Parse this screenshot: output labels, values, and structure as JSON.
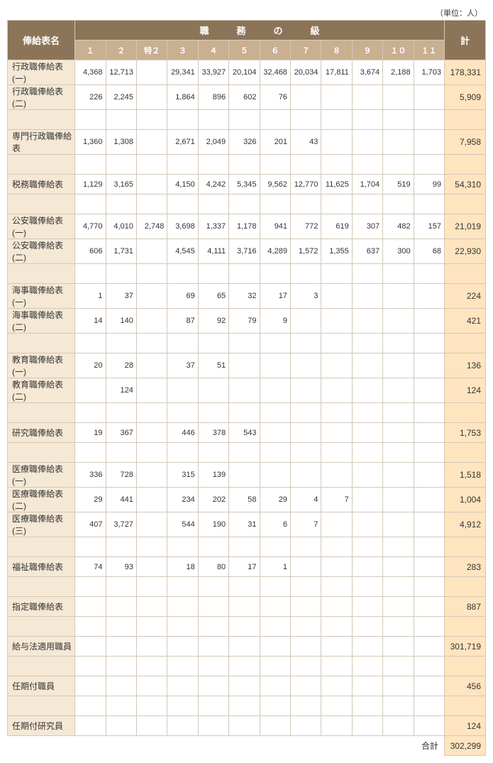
{
  "unit_label": "（単位：人）",
  "headers": {
    "row_name": "俸給表名",
    "grade_group": "職　　　務　　　の　　　級",
    "total": "計",
    "grades": [
      "１",
      "２",
      "特２",
      "３",
      "４",
      "５",
      "６",
      "７",
      "８",
      "９",
      "１０",
      "１１"
    ]
  },
  "rows": [
    {
      "name": "行政職俸給表(一)",
      "c": [
        "4,368",
        "12,713",
        "",
        "29,341",
        "33,927",
        "20,104",
        "32,468",
        "20,034",
        "17,811",
        "3,674",
        "2,188",
        "1,703"
      ],
      "total": "178,331"
    },
    {
      "name": "行政職俸給表(二)",
      "c": [
        "226",
        "2,245",
        "",
        "1,864",
        "896",
        "602",
        "76",
        "",
        "",
        "",
        "",
        ""
      ],
      "total": "5,909"
    },
    {
      "name": "",
      "c": [
        "",
        "",
        "",
        "",
        "",
        "",
        "",
        "",
        "",
        "",
        "",
        ""
      ],
      "total": ""
    },
    {
      "name": "専門行政職俸給表",
      "c": [
        "1,360",
        "1,308",
        "",
        "2,671",
        "2,049",
        "326",
        "201",
        "43",
        "",
        "",
        "",
        ""
      ],
      "total": "7,958"
    },
    {
      "name": "",
      "c": [
        "",
        "",
        "",
        "",
        "",
        "",
        "",
        "",
        "",
        "",
        "",
        ""
      ],
      "total": ""
    },
    {
      "name": "税務職俸給表",
      "c": [
        "1,129",
        "3,165",
        "",
        "4,150",
        "4,242",
        "5,345",
        "9,562",
        "12,770",
        "11,625",
        "1,704",
        "519",
        "99"
      ],
      "total": "54,310"
    },
    {
      "name": "",
      "c": [
        "",
        "",
        "",
        "",
        "",
        "",
        "",
        "",
        "",
        "",
        "",
        ""
      ],
      "total": ""
    },
    {
      "name": "公安職俸給表(一)",
      "c": [
        "4,770",
        "4,010",
        "2,748",
        "3,698",
        "1,337",
        "1,178",
        "941",
        "772",
        "619",
        "307",
        "482",
        "157"
      ],
      "total": "21,019"
    },
    {
      "name": "公安職俸給表(二)",
      "c": [
        "606",
        "1,731",
        "",
        "4,545",
        "4,111",
        "3,716",
        "4,289",
        "1,572",
        "1,355",
        "637",
        "300",
        "68"
      ],
      "total": "22,930"
    },
    {
      "name": "",
      "c": [
        "",
        "",
        "",
        "",
        "",
        "",
        "",
        "",
        "",
        "",
        "",
        ""
      ],
      "total": ""
    },
    {
      "name": "海事職俸給表(一)",
      "c": [
        "1",
        "37",
        "",
        "69",
        "65",
        "32",
        "17",
        "3",
        "",
        "",
        "",
        ""
      ],
      "total": "224"
    },
    {
      "name": "海事職俸給表(二)",
      "c": [
        "14",
        "140",
        "",
        "87",
        "92",
        "79",
        "9",
        "",
        "",
        "",
        "",
        ""
      ],
      "total": "421"
    },
    {
      "name": "",
      "c": [
        "",
        "",
        "",
        "",
        "",
        "",
        "",
        "",
        "",
        "",
        "",
        ""
      ],
      "total": ""
    },
    {
      "name": "教育職俸給表(一)",
      "c": [
        "20",
        "28",
        "",
        "37",
        "51",
        "",
        "",
        "",
        "",
        "",
        "",
        ""
      ],
      "total": "136"
    },
    {
      "name": "教育職俸給表(二)",
      "c": [
        "",
        "124",
        "",
        "",
        "",
        "",
        "",
        "",
        "",
        "",
        "",
        ""
      ],
      "total": "124"
    },
    {
      "name": "",
      "c": [
        "",
        "",
        "",
        "",
        "",
        "",
        "",
        "",
        "",
        "",
        "",
        ""
      ],
      "total": ""
    },
    {
      "name": "研究職俸給表",
      "c": [
        "19",
        "367",
        "",
        "446",
        "378",
        "543",
        "",
        "",
        "",
        "",
        "",
        ""
      ],
      "total": "1,753"
    },
    {
      "name": "",
      "c": [
        "",
        "",
        "",
        "",
        "",
        "",
        "",
        "",
        "",
        "",
        "",
        ""
      ],
      "total": ""
    },
    {
      "name": "医療職俸給表(一)",
      "c": [
        "336",
        "728",
        "",
        "315",
        "139",
        "",
        "",
        "",
        "",
        "",
        "",
        ""
      ],
      "total": "1,518"
    },
    {
      "name": "医療職俸給表(二)",
      "c": [
        "29",
        "441",
        "",
        "234",
        "202",
        "58",
        "29",
        "4",
        "7",
        "",
        "",
        ""
      ],
      "total": "1,004"
    },
    {
      "name": "医療職俸給表(三)",
      "c": [
        "407",
        "3,727",
        "",
        "544",
        "190",
        "31",
        "6",
        "7",
        "",
        "",
        "",
        ""
      ],
      "total": "4,912"
    },
    {
      "name": "",
      "c": [
        "",
        "",
        "",
        "",
        "",
        "",
        "",
        "",
        "",
        "",
        "",
        ""
      ],
      "total": ""
    },
    {
      "name": "福祉職俸給表",
      "c": [
        "74",
        "93",
        "",
        "18",
        "80",
        "17",
        "1",
        "",
        "",
        "",
        "",
        ""
      ],
      "total": "283"
    },
    {
      "name": "",
      "c": [
        "",
        "",
        "",
        "",
        "",
        "",
        "",
        "",
        "",
        "",
        "",
        ""
      ],
      "total": ""
    },
    {
      "name": "指定職俸給表",
      "c": [
        "",
        "",
        "",
        "",
        "",
        "",
        "",
        "",
        "",
        "",
        "",
        ""
      ],
      "total": "887"
    },
    {
      "name": "",
      "c": [
        "",
        "",
        "",
        "",
        "",
        "",
        "",
        "",
        "",
        "",
        "",
        ""
      ],
      "total": ""
    },
    {
      "name": "給与法適用職員",
      "c": [
        "",
        "",
        "",
        "",
        "",
        "",
        "",
        "",
        "",
        "",
        "",
        ""
      ],
      "total": "301,719"
    },
    {
      "name": "",
      "c": [
        "",
        "",
        "",
        "",
        "",
        "",
        "",
        "",
        "",
        "",
        "",
        ""
      ],
      "total": ""
    },
    {
      "name": "任期付職員",
      "c": [
        "",
        "",
        "",
        "",
        "",
        "",
        "",
        "",
        "",
        "",
        "",
        ""
      ],
      "total": "456"
    },
    {
      "name": "",
      "c": [
        "",
        "",
        "",
        "",
        "",
        "",
        "",
        "",
        "",
        "",
        "",
        ""
      ],
      "total": ""
    },
    {
      "name": "任期付研究員",
      "c": [
        "",
        "",
        "",
        "",
        "",
        "",
        "",
        "",
        "",
        "",
        "",
        ""
      ],
      "total": "124"
    }
  ],
  "footer": {
    "label": "合計",
    "value": "302,299"
  },
  "colors": {
    "header_main_bg": "#8c7458",
    "header_sub_bg": "#c8b090",
    "row_name_bg": "#f5e8d4",
    "total_bg": "#ffe4c0",
    "border": "#d4c8b8"
  }
}
